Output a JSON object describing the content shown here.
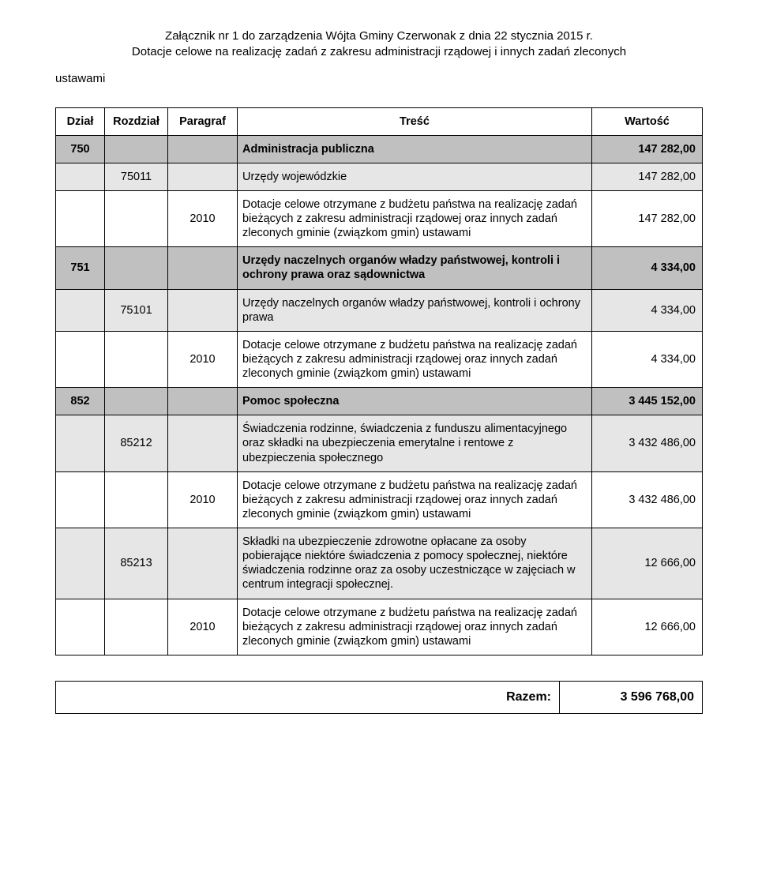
{
  "header": {
    "line1": "Załącznik nr 1 do zarządzenia Wójta Gminy Czerwonak z dnia 22 stycznia 2015 r.",
    "line2": "Dotacje celowe na realizację zadań z zakresu administracji rządowej i innych zadań zleconych",
    "line3": "ustawami"
  },
  "columns": {
    "dzial": "Dział",
    "rozdzial": "Rozdział",
    "paragraf": "Paragraf",
    "tresc": "Treść",
    "wartosc": "Wartość"
  },
  "rows": [
    {
      "type": "section",
      "dzial": "750",
      "tresc": "Administracja publiczna",
      "wartosc": "147 282,00"
    },
    {
      "type": "sub",
      "rozdzial": "75011",
      "tresc": "Urzędy wojewódzkie",
      "wartosc": "147 282,00"
    },
    {
      "type": "item",
      "paragraf": "2010",
      "tresc": "Dotacje celowe otrzymane z budżetu państwa na realizację zadań bieżących z zakresu administracji rządowej oraz innych zadań zleconych gminie (związkom gmin) ustawami",
      "wartosc": "147 282,00"
    },
    {
      "type": "section",
      "dzial": "751",
      "tresc": "Urzędy naczelnych organów władzy państwowej, kontroli i ochrony prawa oraz sądownictwa",
      "wartosc": "4 334,00"
    },
    {
      "type": "sub",
      "rozdzial": "75101",
      "tresc": "Urzędy naczelnych organów władzy państwowej, kontroli i ochrony prawa",
      "wartosc": "4 334,00"
    },
    {
      "type": "item",
      "paragraf": "2010",
      "tresc": "Dotacje celowe otrzymane z budżetu państwa na realizację zadań bieżących z zakresu administracji rządowej oraz innych zadań zleconych gminie (związkom gmin) ustawami",
      "wartosc": "4 334,00"
    },
    {
      "type": "section",
      "dzial": "852",
      "tresc": "Pomoc społeczna",
      "wartosc": "3 445 152,00"
    },
    {
      "type": "sub",
      "rozdzial": "85212",
      "tresc": "Świadczenia rodzinne, świadczenia z funduszu alimentacyjnego oraz składki na ubezpieczenia emerytalne i rentowe z ubezpieczenia społecznego",
      "wartosc": "3 432 486,00"
    },
    {
      "type": "item",
      "paragraf": "2010",
      "tresc": "Dotacje celowe otrzymane z budżetu państwa na realizację zadań bieżących z zakresu administracji rządowej oraz innych zadań zleconych gminie (związkom gmin) ustawami",
      "wartosc": "3 432 486,00"
    },
    {
      "type": "sub",
      "rozdzial": "85213",
      "tresc": "Składki na ubezpieczenie zdrowotne opłacane za osoby pobierające niektóre świadczenia z pomocy społecznej, niektóre świadczenia rodzinne oraz za osoby uczestniczące w zajęciach w centrum integracji społecznej.",
      "wartosc": "12 666,00"
    },
    {
      "type": "item",
      "paragraf": "2010",
      "tresc": "Dotacje celowe otrzymane z budżetu państwa na realizację zadań bieżących z zakresu administracji rządowej oraz innych zadań zleconych gminie (związkom gmin) ustawami",
      "wartosc": "12 666,00"
    }
  ],
  "summary": {
    "label": "Razem:",
    "value": "3 596 768,00"
  },
  "styles": {
    "section_bg": "#c0c0c0",
    "sub_bg": "#e6e6e6",
    "border_color": "#000000",
    "font_size_body": 14.5,
    "font_size_summary": 16
  }
}
